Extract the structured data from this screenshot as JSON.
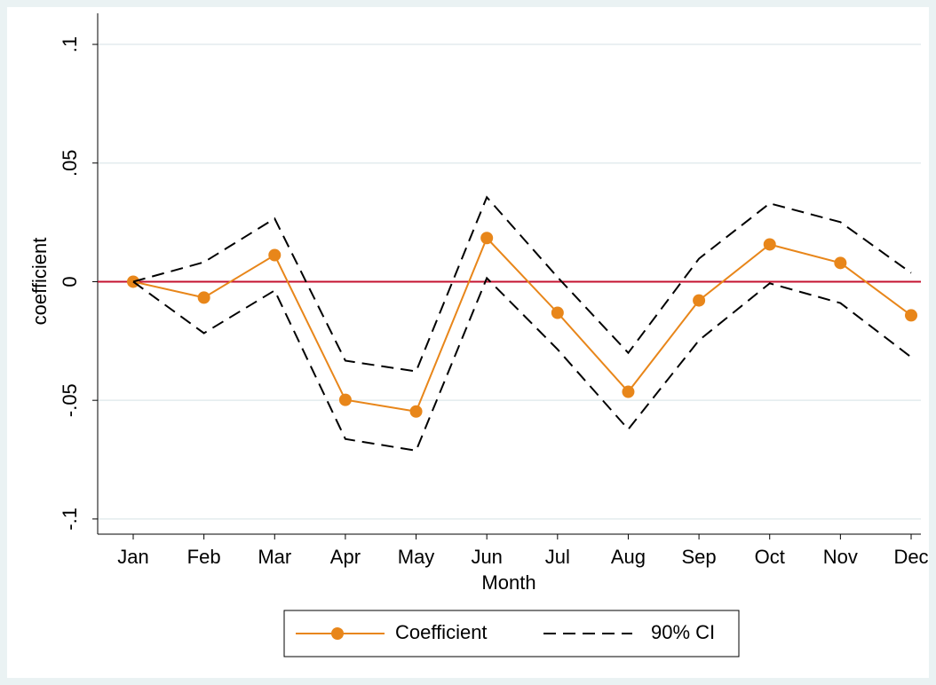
{
  "chart_data": {
    "type": "line",
    "x_label": "Month",
    "y_label": "coefficient",
    "categories": [
      "Jan",
      "Feb",
      "Mar",
      "Apr",
      "May",
      "Jun",
      "Jul",
      "Aug",
      "Sep",
      "Oct",
      "Nov",
      "Dec"
    ],
    "series": [
      {
        "name": "Coefficient",
        "color": "#e8861a",
        "markers": true,
        "values": [
          0,
          -0.0067,
          0.0112,
          -0.0498,
          -0.0547,
          0.0184,
          -0.0131,
          -0.0464,
          -0.0079,
          0.0157,
          0.0079,
          -0.0142
        ]
      },
      {
        "name": "90% CI",
        "color": "#000000",
        "dashed": true,
        "upper": [
          0,
          0.0082,
          0.0266,
          -0.0333,
          -0.0378,
          0.0356,
          0.0019,
          -0.03,
          0.0097,
          0.033,
          0.0251,
          0.0037
        ],
        "lower": [
          0,
          -0.0217,
          -0.0037,
          -0.0663,
          -0.0712,
          0.0015,
          -0.0285,
          -0.0622,
          -0.0247,
          -0.0007,
          -0.009,
          -0.0318
        ]
      }
    ],
    "reference_line": {
      "value": 0,
      "color": "#c4122f"
    },
    "ylim": [
      -0.1064,
      0.1131
    ],
    "yticks": [
      {
        "value": -0.1,
        "label": "-.1"
      },
      {
        "value": -0.05,
        "label": "-.05"
      },
      0,
      {
        "value": 0.05,
        "label": ".05"
      },
      {
        "value": 0.1,
        "label": ".1"
      }
    ],
    "grid": true,
    "legend": "bottom"
  }
}
